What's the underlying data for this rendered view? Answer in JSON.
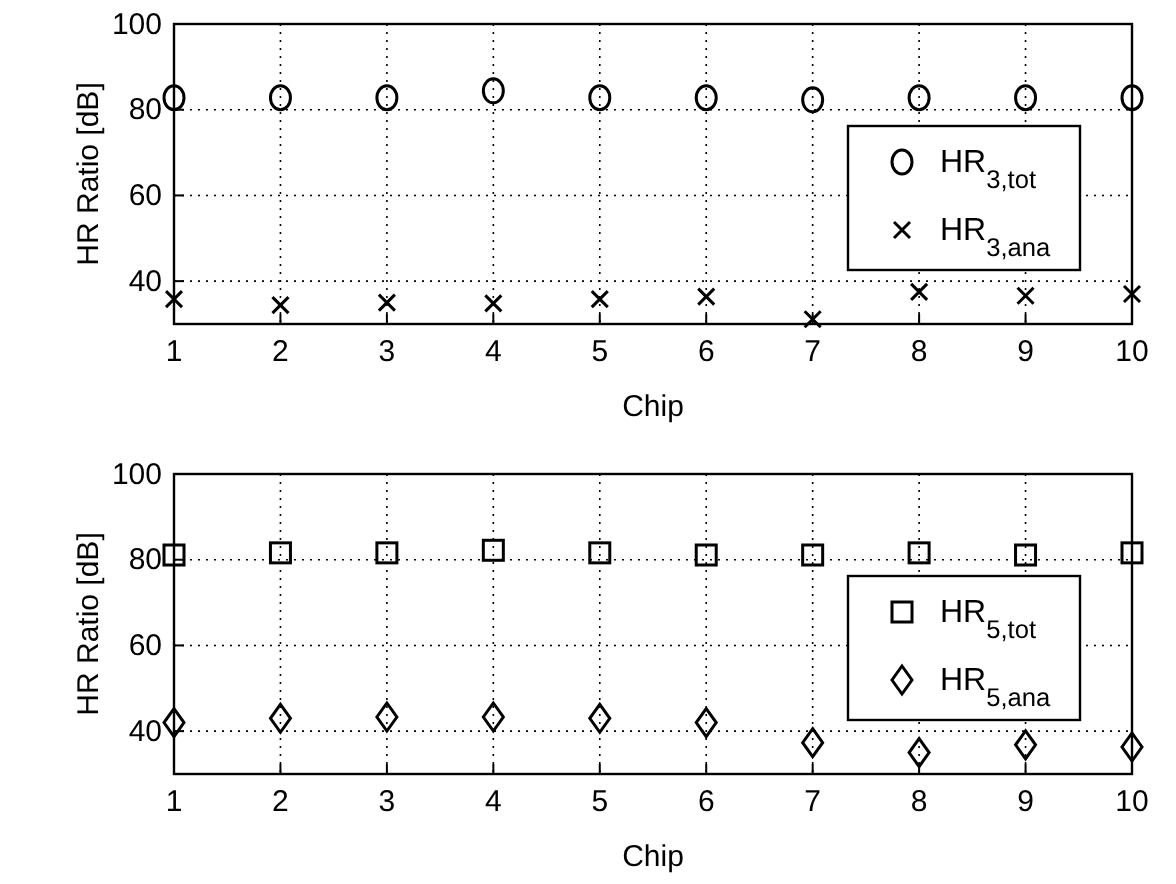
{
  "chart_data": [
    {
      "type": "scatter",
      "xlabel": "Chip",
      "ylabel": "HR Ratio [dB]",
      "x": [
        1,
        2,
        3,
        4,
        5,
        6,
        7,
        8,
        9,
        10
      ],
      "xlim": [
        1,
        10
      ],
      "xticks": [
        1,
        2,
        3,
        4,
        5,
        6,
        7,
        8,
        9,
        10
      ],
      "ylim": [
        30,
        100
      ],
      "yticks": [
        40,
        60,
        80,
        100
      ],
      "grid": true,
      "legend": "right",
      "series": [
        {
          "name": "HR$_{3,tot}$",
          "color": "#000000",
          "marker": "circle",
          "values": [
            82.8,
            82.8,
            82.8,
            84.4,
            82.8,
            82.8,
            82.3,
            82.8,
            82.8,
            82.8
          ]
        },
        {
          "name": "HR$_{3,ana}$",
          "color": "#000000",
          "marker": "cross",
          "values": [
            35.8,
            34.4,
            35,
            34.8,
            35.8,
            36.4,
            31.1,
            37.5,
            36.6,
            37
          ]
        }
      ]
    },
    {
      "type": "scatter",
      "xlabel": "Chip",
      "ylabel": "HR Ratio [dB]",
      "x": [
        1,
        2,
        3,
        4,
        5,
        6,
        7,
        8,
        9,
        10
      ],
      "xlim": [
        1,
        10
      ],
      "xticks": [
        1,
        2,
        3,
        4,
        5,
        6,
        7,
        8,
        9,
        10
      ],
      "ylim": [
        30,
        100
      ],
      "yticks": [
        40,
        60,
        80,
        100
      ],
      "grid": true,
      "legend": "right",
      "series": [
        {
          "name": "HR$_{5,tot}$",
          "color": "#000000",
          "marker": "square",
          "values": [
            81.1,
            81.6,
            81.6,
            82.2,
            81.6,
            81.1,
            81.1,
            81.6,
            81.1,
            81.6
          ]
        },
        {
          "name": "HR$_{5,ana}$",
          "color": "#000000",
          "marker": "diamond",
          "values": [
            42,
            43,
            43.3,
            43.3,
            43,
            42,
            37.3,
            35,
            36.8,
            36.3
          ]
        }
      ]
    }
  ]
}
